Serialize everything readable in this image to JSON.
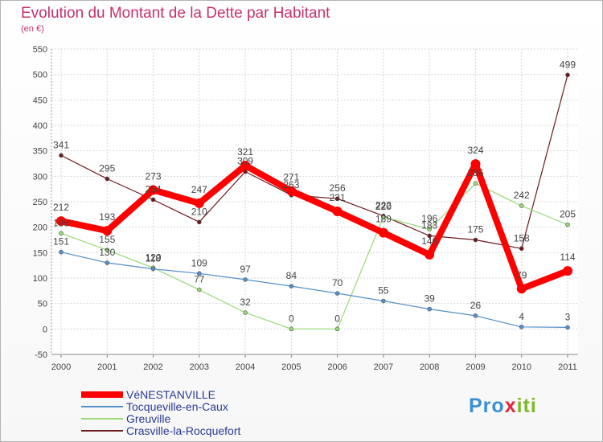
{
  "title": "Evolution du Montant de la Dette par Habitant",
  "subtitle": "(en €)",
  "logo": {
    "p1": "Pro",
    "p2": "x",
    "p3": "iti"
  },
  "chart_data": {
    "type": "line",
    "x": [
      "2000",
      "2001",
      "2002",
      "2003",
      "2004",
      "2005",
      "2006",
      "2007",
      "2008",
      "2009",
      "2010",
      "2011"
    ],
    "ylim": [
      -50,
      550
    ],
    "yticks": [
      -50,
      0,
      50,
      100,
      150,
      200,
      250,
      300,
      350,
      400,
      450,
      500,
      550
    ],
    "grid": true,
    "legend_position": "bottom-left",
    "series": [
      {
        "name": "Crasville-la-Rocquefort",
        "color": "#6b1a1e",
        "width": 1.2,
        "marker": 5,
        "values": [
          341,
          295,
          254,
          210,
          309,
          263,
          256,
          222,
          183,
          175,
          158,
          499
        ]
      },
      {
        "name": "Greuville",
        "color": "#99d976",
        "width": 1.2,
        "marker": 5,
        "values": [
          188,
          155,
          120,
          77,
          32,
          0,
          0,
          220,
          196,
          286,
          242,
          205
        ]
      },
      {
        "name": "Tocqueville-en-Caux",
        "color": "#5590c9",
        "width": 1.2,
        "marker": 5,
        "values": [
          151,
          130,
          118,
          109,
          97,
          84,
          70,
          55,
          39,
          26,
          4,
          3
        ]
      },
      {
        "name": "VéNESTANVILLE",
        "color": "#ff0000",
        "width": 8,
        "marker": 12,
        "values": [
          212,
          193,
          273,
          247,
          321,
          271,
          231,
          189,
          146,
          324,
          79,
          114
        ]
      }
    ]
  }
}
